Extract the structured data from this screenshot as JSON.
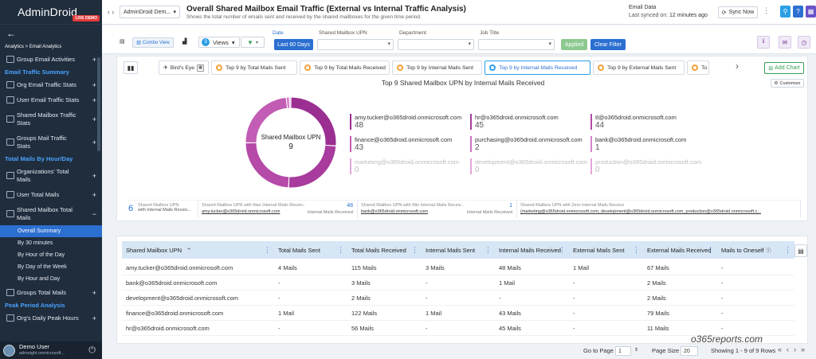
{
  "brand": {
    "name": "AdminDroid",
    "badge": "LIVE DEMO"
  },
  "sidebar": {
    "breadcrumb": "Analytics > Email Analytics",
    "items": [
      {
        "type": "item",
        "label": "Group Email Activities",
        "plus": "+"
      },
      {
        "type": "section",
        "label": "Email Traffic Summary"
      },
      {
        "type": "item",
        "label": "Org Email Traffic Stats",
        "plus": "+"
      },
      {
        "type": "item",
        "label": "User Email Traffic Stats",
        "plus": "+"
      },
      {
        "type": "item",
        "label": "Shared Mailbox Traffic Stats",
        "plus": "+"
      },
      {
        "type": "item",
        "label": "Groups Mail Traffic Stats",
        "plus": "+"
      },
      {
        "type": "section",
        "label": "Total Mails By Hour/Day"
      },
      {
        "type": "item",
        "label": "Organizations' Total Mails",
        "plus": "+"
      },
      {
        "type": "item",
        "label": "User Total Mails",
        "plus": "+"
      },
      {
        "type": "item",
        "label": "Shared Mailbox Total Mails",
        "plus": "−"
      },
      {
        "type": "sub",
        "label": "Overall Summary",
        "active": true
      },
      {
        "type": "sub",
        "label": "By 30 minutes"
      },
      {
        "type": "sub",
        "label": "By Hour of the Day"
      },
      {
        "type": "sub",
        "label": "By Day of the Week"
      },
      {
        "type": "sub",
        "label": "By Hour and Day"
      },
      {
        "type": "item",
        "label": "Groups Total Mails",
        "plus": "+"
      },
      {
        "type": "section",
        "label": "Peak Period Analysis"
      },
      {
        "type": "item",
        "label": "Org's Daily Peak Hours",
        "plus": "+"
      }
    ],
    "user": {
      "name": "Demo User",
      "email": "admeight.onmicrosoft..."
    }
  },
  "topbar": {
    "tenant": "AdminDroid Dem...",
    "title": "Overall Shared Mailbox Email Traffic (External vs Internal Traffic Analysis)",
    "subtitle": "Shows the total number of emails sent and received by the shared mailboxes for the given time period.",
    "data_label": "Email Data",
    "synced_prefix": "Last synced on: ",
    "synced_value": "12 minutes ago",
    "sync_label": "Sync Now"
  },
  "toolbar": {
    "combo_label": "Combo View",
    "views_count": "3",
    "views_label": "Views",
    "date_label": "Date",
    "date_value": "Last 60 Days",
    "filter1_label": "Shared Mailbox UPN",
    "filter2_label": "Department",
    "filter3_label": "Job Title",
    "applied_label": "Applied",
    "clear_label": "Clear Filter"
  },
  "chart_tabs": {
    "birds_eye": "Bird's Eye",
    "tabs": [
      {
        "label": "Top 9 by Total Mails Sent",
        "active": false
      },
      {
        "label": "Top 9 by Total Mails Received",
        "active": false
      },
      {
        "label": "Top 9 by Internal Mails Sent",
        "active": false
      },
      {
        "label": "Top 9 by Internal Mails Received",
        "active": true
      },
      {
        "label": "Top 9 by External Mails Sent",
        "active": false
      },
      {
        "label": "To",
        "active": false
      }
    ],
    "add_chart": "Add Chart",
    "customize": "Customize"
  },
  "chart_data": {
    "type": "pie",
    "title": "Top 9 Shared Mailbox UPN by Internal Mails Received",
    "center_label": "Shared Mailbox UPN",
    "center_value": "9",
    "categories": [
      "amy.tucker@o365droid.onmicrosoft.com",
      "hr@o365droid.onmicrosoft.com",
      "tl@o365droid.onmicrosoft.com",
      "finance@o365droid.onmicrosoft.com",
      "purchasing@o365droid.onmicrosoft.com",
      "bank@o365droid.onmicrosoft.com",
      "marketing@o365droid.onmicrosoft.com",
      "development@o365droid.onmicrosoft.com",
      "production@o365droid.onmicrosoft.com"
    ],
    "values": [
      48,
      45,
      44,
      43,
      2,
      1,
      0,
      0,
      0
    ],
    "colors": [
      "#9b2e91",
      "#a83b9d",
      "#b54aa9",
      "#c25cb4",
      "#cf6fc0",
      "#d983cb",
      "#e3a6d9",
      "#e3a6d9",
      "#e3a6d9"
    ],
    "legend": "right"
  },
  "summary": [
    {
      "count": "6",
      "title": "Shared Mailbox UPN",
      "subtitle": "with Internal Mails Receiv..."
    },
    {
      "title": "Shared Mailbox UPN with Max Internal Mails Receiv...",
      "link": "amy.tucker@o365droid.onmicrosoft.com",
      "value": "48",
      "unit": "Internal Mails Received"
    },
    {
      "title": "Shared Mailbox UPN with Min Internal Mails Receiv...",
      "link": "bank@o365droid.onmicrosoft.com",
      "value": "1",
      "unit": "Internal Mails Received"
    },
    {
      "title": "Shared Mailbox UPN with Zero Internal Mails Received",
      "link": "(marketing@o365droid.onmicrosoft.com, development@o365droid.onmicrosoft.com, production@o365droid.onmicrosoft.c..."
    }
  ],
  "grid": {
    "columns": [
      "Shared Mailbox UPN",
      "Total Mails Sent",
      "Total Mails Received",
      "Internal Mails Sent",
      "Internal Mails Received",
      "External Mails Sent",
      "External Mails Received",
      "Mails to Oneself"
    ],
    "rows": [
      [
        "amy.tucker@o365droid.onmicrosoft.com",
        "4 Mails",
        "115 Mails",
        "3 Mails",
        "48 Mails",
        "1 Mail",
        "67 Mails",
        "-"
      ],
      [
        "bank@o365droid.onmicrosoft.com",
        "-",
        "3 Mails",
        "-",
        "1 Mail",
        "-",
        "2 Mails",
        "-"
      ],
      [
        "development@o365droid.onmicrosoft.com",
        "-",
        "2 Mails",
        "-",
        "-",
        "-",
        "2 Mails",
        "-"
      ],
      [
        "finance@o365droid.onmicrosoft.com",
        "1 Mail",
        "122 Mails",
        "1 Mail",
        "43 Mails",
        "-",
        "79 Mails",
        "-"
      ],
      [
        "hr@o365droid.onmicrosoft.com",
        "-",
        "56 Mails",
        "-",
        "45 Mails",
        "-",
        "11 Mails",
        "-"
      ]
    ]
  },
  "footer": {
    "goto_label": "Go to Page",
    "goto_value": "1",
    "pagesize_label": "Page Size",
    "pagesize_value": "20",
    "showing": "Showing 1 - 9 of 9 Rows"
  },
  "watermark": "o365reports.com"
}
